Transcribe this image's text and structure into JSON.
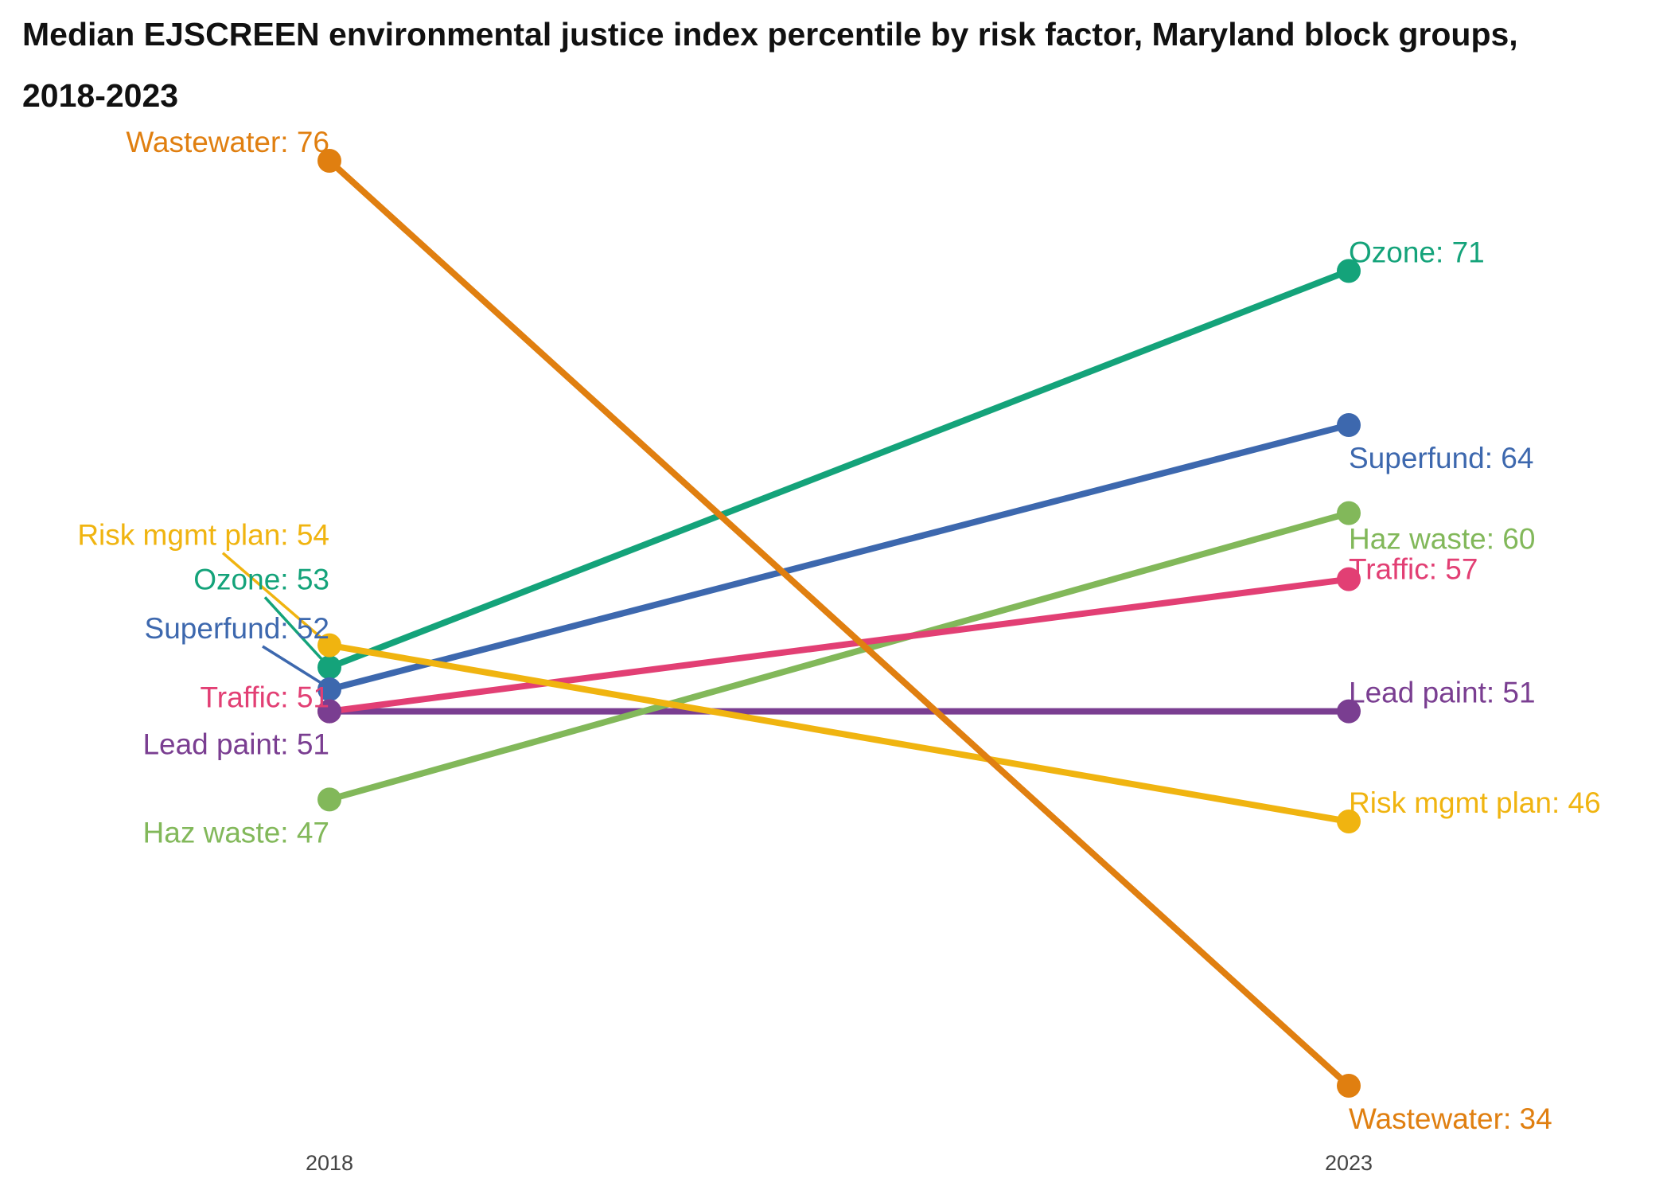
{
  "chart_data": {
    "type": "line",
    "subtype": "slope",
    "title_line1": "Median EJSCREEN environmental justice index percentile by risk factor, Maryland block groups,",
    "title_line2": "2018-2023",
    "x": [
      "2018",
      "2023"
    ],
    "ylim": [
      30,
      80
    ],
    "grid": false,
    "legend": "none (direct labels)",
    "series": [
      {
        "name": "Wastewater",
        "color": "#E07F10",
        "values": [
          76,
          34
        ],
        "label_start": "Wastewater: 76",
        "label_end": "Wastewater: 34"
      },
      {
        "name": "Ozone",
        "color": "#14A37A",
        "values": [
          53,
          71
        ],
        "label_start": "Ozone: 53",
        "label_end": "Ozone: 71"
      },
      {
        "name": "Superfund",
        "color": "#3D68AE",
        "values": [
          52,
          64
        ],
        "label_start": "Superfund: 52",
        "label_end": "Superfund: 64"
      },
      {
        "name": "Haz waste",
        "color": "#82B85A",
        "values": [
          47,
          60
        ],
        "label_start": "Haz waste: 47",
        "label_end": "Haz waste: 60"
      },
      {
        "name": "Traffic",
        "color": "#E23F74",
        "values": [
          51,
          57
        ],
        "label_start": "Traffic: 51",
        "label_end": "Traffic: 57"
      },
      {
        "name": "Lead paint",
        "color": "#7A3E91",
        "values": [
          51,
          51
        ],
        "label_start": "Lead paint: 51",
        "label_end": "Lead paint: 51"
      },
      {
        "name": "Risk mgmt plan",
        "color": "#F0B410",
        "values": [
          54,
          46
        ],
        "label_start": "Risk mgmt plan: 54",
        "label_end": "Risk mgmt plan: 46"
      }
    ]
  }
}
